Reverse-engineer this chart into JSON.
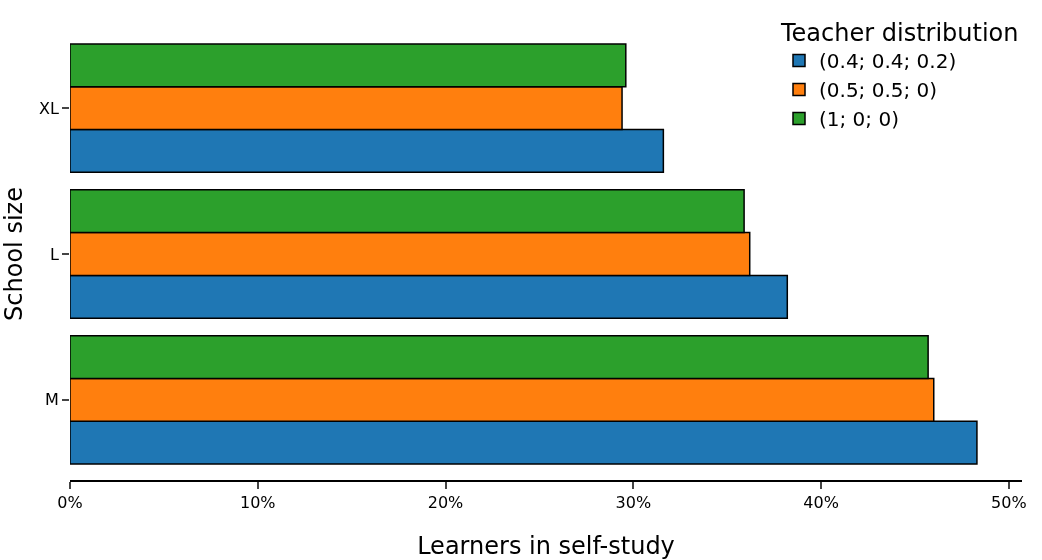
{
  "chart_data": {
    "type": "bar",
    "orientation": "horizontal",
    "xlabel": "Learners in self-study",
    "ylabel": "School size",
    "legend_title": "Teacher distribution",
    "categories": [
      "XL",
      "L",
      "M"
    ],
    "series": [
      {
        "name": "(0.4; 0.4; 0.2)",
        "color": "#1f77b4",
        "values": [
          31.6,
          38.2,
          48.3
        ]
      },
      {
        "name": "(0.5; 0.5; 0)",
        "color": "#ff7f0e",
        "values": [
          29.4,
          36.2,
          46.0
        ]
      },
      {
        "name": "(1; 0; 0)",
        "color": "#2ca02c",
        "values": [
          29.6,
          35.9,
          45.7
        ]
      }
    ],
    "xlim": [
      0,
      50.7
    ],
    "xticks": [
      {
        "value": 0,
        "label": "0%"
      },
      {
        "value": 10,
        "label": "10%"
      },
      {
        "value": 20,
        "label": "20%"
      },
      {
        "value": 30,
        "label": "30%"
      },
      {
        "value": 40,
        "label": "40%"
      },
      {
        "value": 50,
        "label": "50%"
      }
    ],
    "grid": false,
    "legend": "top right"
  }
}
